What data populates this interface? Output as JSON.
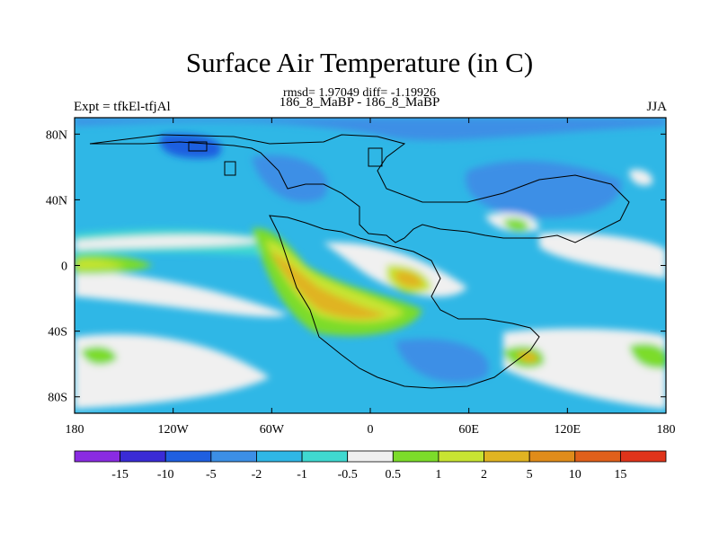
{
  "header": {
    "title": "Surface Air Temperature (in C)",
    "stats": "rmsd= 1.97049 diff= -1.19926",
    "comparison": "186_8_MaBP - 186_8_MaBP",
    "experiment": "Expt = tfkEl-tfjAl",
    "season": "JJA"
  },
  "map": {
    "lat_ticks": [
      "80N",
      "40N",
      "0",
      "40S",
      "80S"
    ],
    "lat_values": [
      80,
      40,
      0,
      -40,
      -80
    ],
    "lon_ticks": [
      "180",
      "120W",
      "60W",
      "0",
      "60E",
      "120E",
      "180"
    ],
    "lon_values": [
      -180,
      -120,
      -60,
      0,
      60,
      120,
      180
    ],
    "lat_range": [
      -90,
      90
    ],
    "lon_range": [
      -180,
      180
    ]
  },
  "colorbar": {
    "labels": [
      "-15",
      "-10",
      "-5",
      "-2",
      "-1",
      "-0.5",
      "0.5",
      "1",
      "2",
      "5",
      "10",
      "15"
    ],
    "colors": [
      "#8a2be2",
      "#3a2bd6",
      "#1f5fe0",
      "#3c8fe6",
      "#2fb7e6",
      "#3fd9d0",
      "#f0f0f0",
      "#7cdc2a",
      "#c8e432",
      "#e0b422",
      "#e08c1a",
      "#e0601a",
      "#e0341a"
    ]
  },
  "palette": {
    "base": "#2fb7e6",
    "cold": "#3c8fe6",
    "colder": "#1f5fe0",
    "neutral_warm": "#3fd9d0",
    "white": "#f0f0f0",
    "green": "#7cdc2a",
    "yellow": "#c8e432",
    "orange": "#e0b422"
  }
}
